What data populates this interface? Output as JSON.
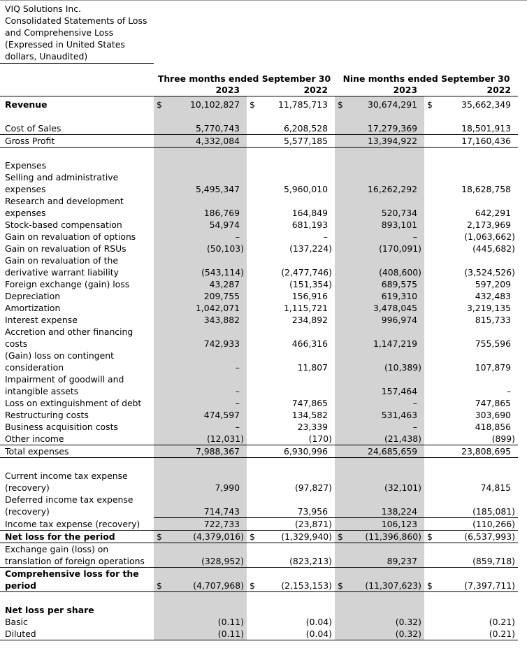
{
  "title_lines": [
    "VIQ Solutions Inc.",
    "Consolidated Statements of Loss",
    "and Comprehensive Loss",
    "(Expressed in United States",
    "dollars, Unaudited)"
  ],
  "header": {
    "period_three": "Three months ended September 30",
    "period_nine": "Nine months ended September 30",
    "years": [
      "2023",
      "2022",
      "2023",
      "2022"
    ]
  },
  "currency_symbol": "$",
  "rows": [
    {
      "label": "Revenue",
      "bold": true,
      "cur": true,
      "values": [
        "10,102,827",
        "11,785,713",
        "30,674,291",
        "35,662,349"
      ]
    },
    {
      "blank": true
    },
    {
      "label": "Cost of Sales",
      "line": "b",
      "values": [
        "5,770,743",
        "6,208,528",
        "17,279,369",
        "18,501,913"
      ]
    },
    {
      "label": "Gross Profit",
      "line": "b",
      "values": [
        "4,332,084",
        "5,577,185",
        "13,394,922",
        "17,160,436"
      ]
    },
    {
      "blank": true
    },
    {
      "label": "Expenses",
      "values": [
        "",
        "",
        "",
        ""
      ]
    },
    {
      "label": "Selling and administrative expenses",
      "values": [
        "5,495,347",
        "5,960,010",
        "16,262,292",
        "18,628,758"
      ]
    },
    {
      "label": "Research and development expenses",
      "values": [
        "186,769",
        "164,849",
        "520,734",
        "642,291"
      ]
    },
    {
      "label": "Stock-based compensation",
      "values": [
        "54,974",
        "681,193",
        "893,101",
        "2,173,969"
      ]
    },
    {
      "label": "Gain on revaluation of options",
      "values": [
        "–",
        "–",
        "–",
        "(1,063,662)"
      ]
    },
    {
      "label": "Gain on revaluation of RSUs",
      "values": [
        "(50,103)",
        "(137,224)",
        "(170,091)",
        "(445,682)"
      ]
    },
    {
      "label": "Gain on revaluation of the derivative warrant liability",
      "values": [
        "(543,114)",
        "(2,477,746)",
        "(408,600)",
        "(3,524,526)"
      ]
    },
    {
      "label": "Foreign exchange (gain) loss",
      "values": [
        "43,287",
        "(151,354)",
        "689,575",
        "597,209"
      ]
    },
    {
      "label": "Depreciation",
      "values": [
        "209,755",
        "156,916",
        "619,310",
        "432,483"
      ]
    },
    {
      "label": "Amortization",
      "values": [
        "1,042,071",
        "1,115,721",
        "3,478,045",
        "3,219,135"
      ]
    },
    {
      "label": "Interest expense",
      "values": [
        "343,882",
        "234,892",
        "996,974",
        "815,733"
      ]
    },
    {
      "label": "Accretion and other financing costs",
      "values": [
        "742,933",
        "466,316",
        "1,147,219",
        "755,596"
      ]
    },
    {
      "label": "(Gain) loss on contingent consideration",
      "values": [
        "–",
        "11,807",
        "(10,389)",
        "107,879"
      ]
    },
    {
      "label": "Impairment of goodwill and intangible assets",
      "values": [
        "–",
        "",
        "157,464",
        "–"
      ]
    },
    {
      "label": "Loss on extinguishment of debt",
      "values": [
        "–",
        "747,865",
        "–",
        "747,865"
      ]
    },
    {
      "label": "Restructuring costs",
      "values": [
        "474,597",
        "134,582",
        "531,463",
        "303,690"
      ]
    },
    {
      "label": "Business acquisition costs",
      "values": [
        "–",
        "23,339",
        "–",
        "418,856"
      ]
    },
    {
      "label": "Other income",
      "line": "b",
      "values": [
        "(12,031)",
        "(170)",
        "(21,438)",
        "(899)"
      ]
    },
    {
      "label": "Total expenses",
      "line": "b",
      "values": [
        "7,988,367",
        "6,930,996",
        "24,685,659",
        "23,808,695"
      ]
    },
    {
      "blank": true
    },
    {
      "label": "Current income tax expense (recovery)",
      "values": [
        "7,990",
        "(97,827)",
        "(32,101)",
        "74,815"
      ]
    },
    {
      "label": "Deferred income tax expense (recovery)",
      "line": "bv",
      "values": [
        "714,743",
        "73,956",
        "138,224",
        "(185,081)"
      ]
    },
    {
      "label": "Income tax expense (recovery)",
      "line": "b",
      "values": [
        "722,733",
        "(23,871)",
        "106,123",
        "(110,266)"
      ]
    },
    {
      "label": "Net loss for the period",
      "bold": true,
      "cur": true,
      "line": "b",
      "values": [
        "(4,379,016)",
        "(1,329,940)",
        "(11,396,860)",
        "(6,537,993)"
      ]
    },
    {
      "label": "Exchange gain (loss) on translation of foreign operations",
      "line": "b",
      "values": [
        "(328,952)",
        "(823,213)",
        "89,237",
        "(859,718)"
      ]
    },
    {
      "label": "Comprehensive loss for the period",
      "bold": true,
      "cur": true,
      "line": "b",
      "values": [
        "(4,707,968)",
        "(2,153,153)",
        "(11,307,623)",
        "(7,397,711)"
      ]
    },
    {
      "blank": true
    },
    {
      "label": "Net loss per share",
      "bold": true,
      "values": [
        "",
        "",
        "",
        ""
      ]
    },
    {
      "label": "Basic",
      "values": [
        "(0.11)",
        "(0.04)",
        "(0.32)",
        "(0.21)"
      ]
    },
    {
      "label": "Diluted",
      "line": "b",
      "values": [
        "(0.11)",
        "(0.04)",
        "(0.32)",
        "(0.21)"
      ]
    }
  ]
}
